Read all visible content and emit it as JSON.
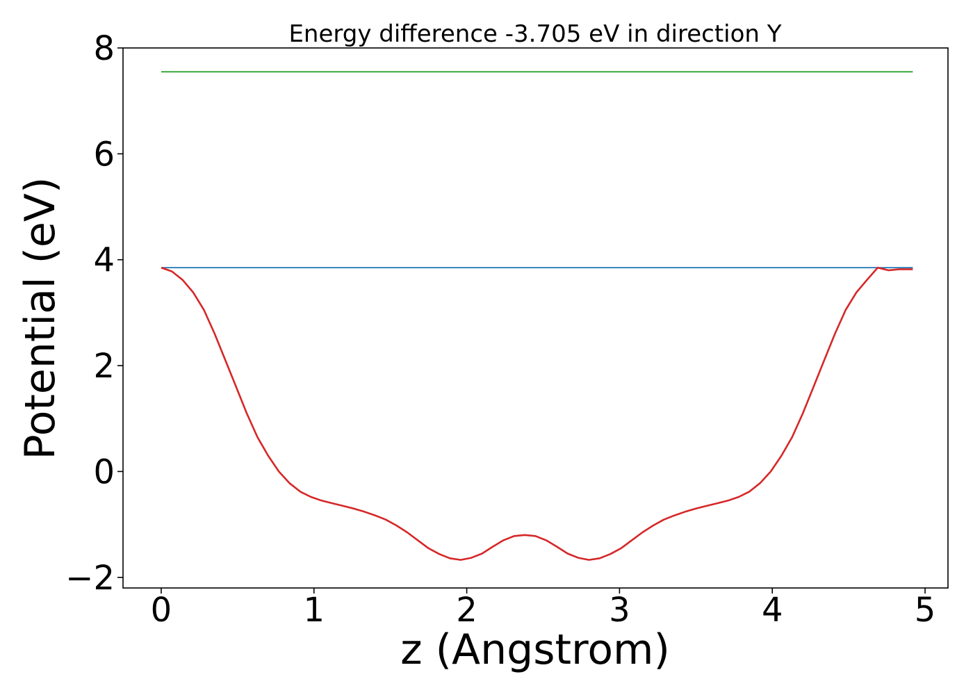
{
  "chart_data": {
    "type": "line",
    "title": "Energy difference -3.705 eV in direction Y",
    "xlabel": "z (Angstrom)",
    "ylabel": "Potential (eV)",
    "xlim": [
      -0.25,
      5.15
    ],
    "ylim": [
      -2.2,
      8.0
    ],
    "xticks": [
      0,
      1,
      2,
      3,
      4,
      5
    ],
    "xtick_labels": [
      "0",
      "1",
      "2",
      "3",
      "4",
      "5"
    ],
    "yticks": [
      -2,
      0,
      2,
      4,
      6,
      8
    ],
    "ytick_labels": [
      "−2",
      "0",
      "2",
      "4",
      "6",
      "8"
    ],
    "grid": false,
    "series": [
      {
        "color": "#2ca02c",
        "x": [
          0,
          4.92
        ],
        "y": [
          7.55,
          7.55
        ]
      },
      {
        "color": "#1f77b4",
        "x": [
          0,
          4.92
        ],
        "y": [
          3.85,
          3.85
        ]
      },
      {
        "color": "#d62728",
        "x": [
          0,
          0.07,
          0.14,
          0.21,
          0.28,
          0.35,
          0.42,
          0.49,
          0.56,
          0.63,
          0.7,
          0.77,
          0.84,
          0.91,
          0.98,
          1.05,
          1.12,
          1.19,
          1.26,
          1.33,
          1.4,
          1.47,
          1.54,
          1.61,
          1.68,
          1.75,
          1.82,
          1.89,
          1.96,
          2.03,
          2.1,
          2.17,
          2.24,
          2.31,
          2.38,
          2.45,
          2.52,
          2.59,
          2.66,
          2.73,
          2.8,
          2.87,
          2.94,
          3.01,
          3.08,
          3.15,
          3.22,
          3.29,
          3.36,
          3.43,
          3.5,
          3.57,
          3.64,
          3.71,
          3.78,
          3.85,
          3.92,
          3.99,
          4.06,
          4.13,
          4.2,
          4.27,
          4.34,
          4.41,
          4.48,
          4.55,
          4.62,
          4.69,
          4.76,
          4.83,
          4.92
        ],
        "y": [
          3.85,
          3.78,
          3.62,
          3.38,
          3.05,
          2.6,
          2.1,
          1.6,
          1.1,
          0.65,
          0.3,
          0.0,
          -0.22,
          -0.38,
          -0.48,
          -0.55,
          -0.6,
          -0.65,
          -0.7,
          -0.76,
          -0.83,
          -0.91,
          -1.02,
          -1.15,
          -1.3,
          -1.45,
          -1.56,
          -1.64,
          -1.67,
          -1.63,
          -1.55,
          -1.42,
          -1.3,
          -1.22,
          -1.2,
          -1.22,
          -1.3,
          -1.42,
          -1.55,
          -1.63,
          -1.67,
          -1.64,
          -1.56,
          -1.45,
          -1.3,
          -1.15,
          -1.02,
          -0.91,
          -0.83,
          -0.76,
          -0.7,
          -0.65,
          -0.6,
          -0.55,
          -0.48,
          -0.38,
          -0.22,
          0.0,
          0.3,
          0.65,
          1.1,
          1.6,
          2.1,
          2.6,
          3.05,
          3.38,
          3.62,
          3.85,
          3.8,
          3.82,
          3.82
        ]
      }
    ]
  }
}
